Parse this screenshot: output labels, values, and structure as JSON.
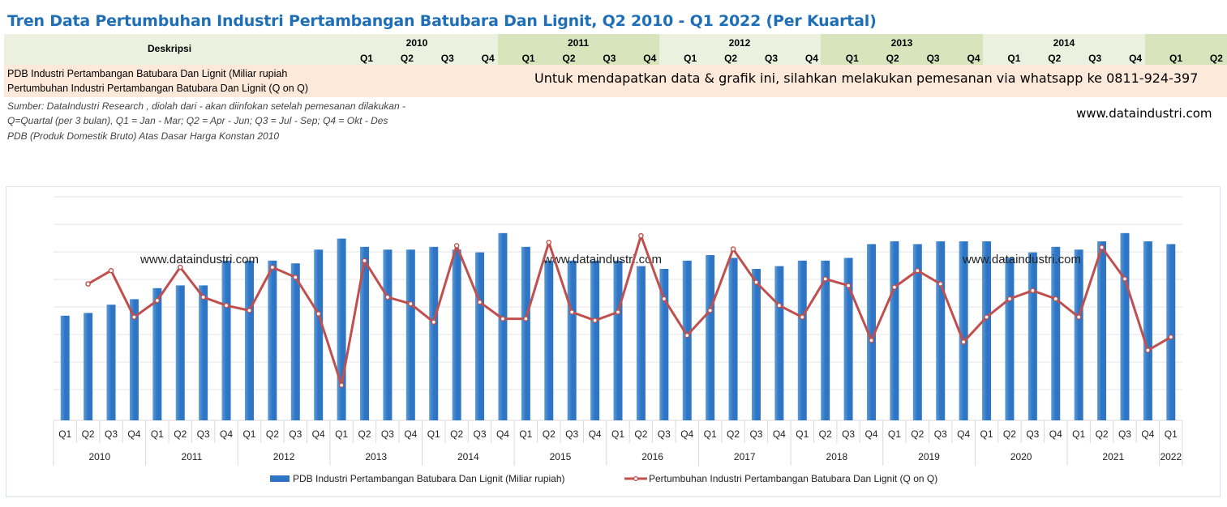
{
  "title": "Tren Data Pertumbuhan Industri Pertambangan Batubara Dan Lignit, Q2 2010 - Q1 2022 (Per Kuartal)",
  "table": {
    "desc_header": "Deskripsi",
    "years": [
      "2010",
      "2011",
      "2012",
      "2013",
      "2014"
    ],
    "quarters": [
      "Q1",
      "Q2",
      "Q3",
      "Q4",
      "Q1",
      "Q2",
      "Q3",
      "Q4",
      "Q1",
      "Q2",
      "Q3",
      "Q4",
      "Q1",
      "Q2",
      "Q3",
      "Q4",
      "Q1",
      "Q2",
      "Q3",
      "Q4",
      "Q1",
      "Q2"
    ],
    "row1": "PDB Industri Pertambangan Batubara Dan Lignit (Miliar rupiah",
    "row2": "Pertumbuhan Industri Pertambangan Batubara Dan Lignit (Q on Q)",
    "promo": "Untuk mendapatkan data & grafik ini, silahkan melakukan pemesanan via whatsapp ke 0811-924-397"
  },
  "notes": [
    "Sumber: DataIndustri Research , diolah dari - akan diinfokan setelah pemesanan dilakukan -",
    "Q=Quartal (per 3 bulan), Q1 = Jan - Mar; Q2 = Apr - Jun; Q3 = Jul - Sep; Q4 = Okt - Des",
    "PDB (Produk Domestik Bruto) Atas Dasar Harga Konstan 2010"
  ],
  "website": "www.dataindustri.com",
  "colors": {
    "bar": "#2e75c6",
    "bar_light": "#5b9bd5",
    "line": "#c0504d",
    "title": "#1f6fb6"
  },
  "chart_data": {
    "type": "bar+line",
    "watermark": "www.dataindustri.com",
    "grid": true,
    "legend_position": "bottom",
    "categories": [
      [
        "Q1",
        "2010"
      ],
      [
        "Q2",
        "2010"
      ],
      [
        "Q3",
        "2010"
      ],
      [
        "Q4",
        "2010"
      ],
      [
        "Q1",
        "2011"
      ],
      [
        "Q2",
        "2011"
      ],
      [
        "Q3",
        "2011"
      ],
      [
        "Q4",
        "2011"
      ],
      [
        "Q1",
        "2012"
      ],
      [
        "Q2",
        "2012"
      ],
      [
        "Q3",
        "2012"
      ],
      [
        "Q4",
        "2012"
      ],
      [
        "Q1",
        "2013"
      ],
      [
        "Q2",
        "2013"
      ],
      [
        "Q3",
        "2013"
      ],
      [
        "Q4",
        "2013"
      ],
      [
        "Q1",
        "2014"
      ],
      [
        "Q2",
        "2014"
      ],
      [
        "Q3",
        "2014"
      ],
      [
        "Q4",
        "2014"
      ],
      [
        "Q1",
        "2015"
      ],
      [
        "Q2",
        "2015"
      ],
      [
        "Q3",
        "2015"
      ],
      [
        "Q4",
        "2015"
      ],
      [
        "Q1",
        "2016"
      ],
      [
        "Q2",
        "2016"
      ],
      [
        "Q3",
        "2016"
      ],
      [
        "Q4",
        "2016"
      ],
      [
        "Q1",
        "2017"
      ],
      [
        "Q2",
        "2017"
      ],
      [
        "Q3",
        "2017"
      ],
      [
        "Q4",
        "2017"
      ],
      [
        "Q1",
        "2018"
      ],
      [
        "Q2",
        "2018"
      ],
      [
        "Q3",
        "2018"
      ],
      [
        "Q4",
        "2018"
      ],
      [
        "Q1",
        "2019"
      ],
      [
        "Q2",
        "2019"
      ],
      [
        "Q3",
        "2019"
      ],
      [
        "Q4",
        "2019"
      ],
      [
        "Q1",
        "2020"
      ],
      [
        "Q2",
        "2020"
      ],
      [
        "Q3",
        "2020"
      ],
      [
        "Q4",
        "2020"
      ],
      [
        "Q1",
        "2021"
      ],
      [
        "Q2",
        "2021"
      ],
      [
        "Q3",
        "2021"
      ],
      [
        "Q4",
        "2021"
      ],
      [
        "Q1",
        "2022"
      ]
    ],
    "year_labels": [
      "2010",
      "2011",
      "2012",
      "2013",
      "2014",
      "2015",
      "2016",
      "2017",
      "2018",
      "2019",
      "2020",
      "2021",
      "2022"
    ],
    "series": [
      {
        "name": "PDB Industri Pertambangan Batubara Dan Lignit (Miliar rupiah)",
        "kind": "bar",
        "values": [
          3.8,
          3.9,
          4.2,
          4.4,
          4.8,
          4.9,
          4.9,
          5.8,
          5.8,
          5.8,
          5.7,
          6.2,
          6.6,
          6.3,
          6.2,
          6.2,
          6.3,
          6.2,
          6.1,
          6.8,
          6.3,
          5.8,
          5.8,
          5.8,
          5.8,
          5.6,
          5.5,
          5.8,
          6.0,
          5.9,
          5.5,
          5.6,
          5.8,
          5.8,
          5.9,
          6.4,
          6.5,
          6.4,
          6.5,
          6.5,
          6.5,
          5.9,
          6.1,
          6.3,
          6.2,
          6.5,
          6.8,
          6.5,
          6.4
        ]
      },
      {
        "name": "Pertumbuhan Industri Pertambangan Batubara Dan Lignit (Q on Q)",
        "kind": "line",
        "values": [
          null,
          4.9,
          5.7,
          2.9,
          3.9,
          5.9,
          4.1,
          3.6,
          3.3,
          5.9,
          5.3,
          3.1,
          -1.2,
          6.3,
          4.1,
          3.7,
          2.6,
          7.2,
          3.8,
          2.8,
          2.8,
          7.4,
          3.2,
          2.7,
          3.2,
          7.8,
          4.0,
          1.8,
          3.3,
          7.0,
          5.0,
          3.6,
          2.9,
          5.2,
          4.8,
          1.5,
          4.7,
          5.7,
          4.9,
          1.4,
          2.9,
          4.0,
          4.5,
          4.0,
          2.9,
          7.1,
          5.2,
          0.9,
          1.7
        ]
      }
    ]
  }
}
